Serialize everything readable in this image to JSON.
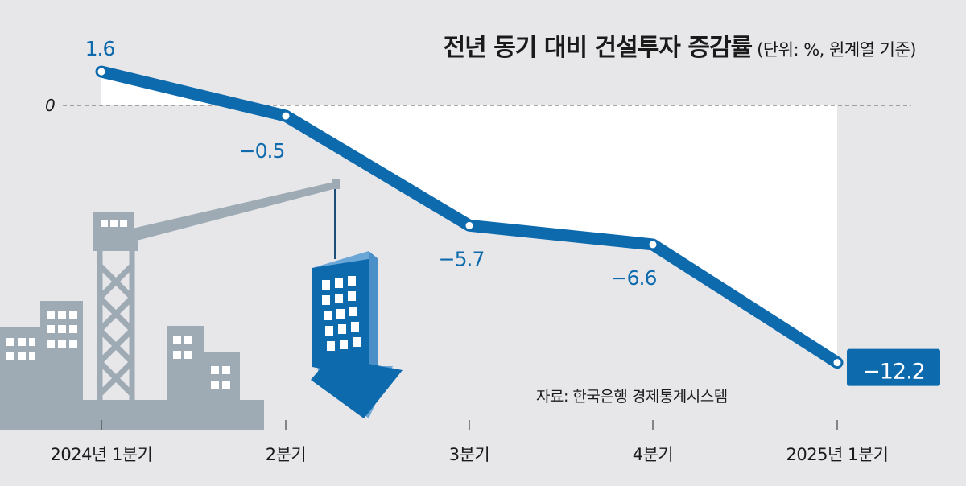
{
  "chart_data": {
    "type": "line",
    "title": "전년 동기 대비 건설투자 증감률",
    "unit_note": "(단위: %, 원계열 기준)",
    "categories": [
      "2024년 1분기",
      "2분기",
      "3분기",
      "4분기",
      "2025년 1분기"
    ],
    "series": [
      {
        "values": [
          1.6,
          -0.5,
          -5.7,
          -6.6,
          -12.2
        ]
      }
    ],
    "value_labels": [
      "1.6",
      "−0.5",
      "−5.7",
      "−6.6",
      "−12.2"
    ],
    "zero_label": "0",
    "source": "자료: 한국은행 경제통계시스템",
    "colors": {
      "line": "#0c6aad",
      "background": "#e7e7ea",
      "highlight_box": "#0c6aad",
      "illustration": "#9eabb4"
    }
  }
}
